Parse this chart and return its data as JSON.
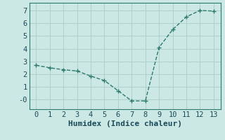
{
  "x": [
    0,
    1,
    2,
    3,
    4,
    5,
    6,
    7,
    8,
    9,
    10,
    11,
    12,
    13
  ],
  "y": [
    2.7,
    2.5,
    2.35,
    2.25,
    1.85,
    1.5,
    0.7,
    -0.1,
    -0.1,
    4.1,
    5.5,
    6.5,
    7.0,
    6.95
  ],
  "line_color": "#2d7a6e",
  "bg_color": "#cce8e4",
  "grid_color": "#b0d0cc",
  "xlabel": "Humidex (Indice chaleur)",
  "xlim": [
    -0.5,
    13.5
  ],
  "ylim": [
    -0.75,
    7.6
  ],
  "xticks": [
    0,
    1,
    2,
    3,
    4,
    5,
    6,
    7,
    8,
    9,
    10,
    11,
    12,
    13
  ],
  "yticks": [
    0,
    1,
    2,
    3,
    4,
    5,
    6,
    7
  ],
  "ytick_labels": [
    "-0",
    "1",
    "2",
    "3",
    "4",
    "5",
    "6",
    "7"
  ],
  "font_color": "#1a4a5a",
  "font_size": 7.5
}
